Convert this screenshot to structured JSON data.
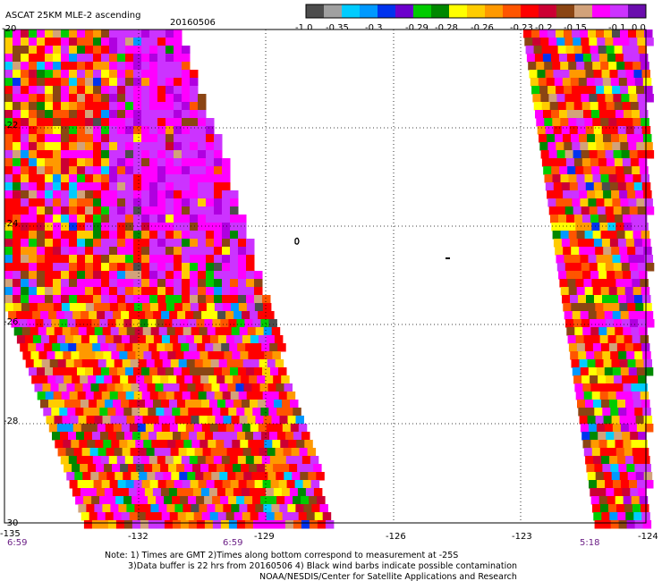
{
  "header": {
    "title": "ASCAT 25KM MLE-2 ascending",
    "date": "20160506"
  },
  "colorbar": {
    "colors": [
      "#4d4d4d",
      "#a0a0a0",
      "#00ccff",
      "#0099ff",
      "#0033ee",
      "#6c00cc",
      "#00cc00",
      "#008800",
      "#ffff00",
      "#ffcc00",
      "#ff9900",
      "#ff5500",
      "#ff0000",
      "#cc0033",
      "#8b4513",
      "#d2a27a",
      "#ff00ff",
      "#cc33ff",
      "#6a0dad"
    ],
    "labels": [
      "-1.0",
      "-0.35",
      "-0.3",
      "-0.29",
      "-0.28",
      "-0.26",
      "-0.23",
      "-0.2",
      "-0.15",
      "-0.1",
      "0.0"
    ]
  },
  "map": {
    "lon_range": [
      -135,
      -124
    ],
    "lat_range": [
      -30,
      -20
    ],
    "x_ticks": [
      "-135",
      "-132",
      "-129",
      "-126",
      "-123",
      "-124"
    ],
    "y_ticks": [
      "-20",
      "-22",
      "-24",
      "-26",
      "-28",
      "-30"
    ],
    "swath_times": [
      "6:59",
      "6:59",
      "5:18"
    ]
  },
  "notes": {
    "line1": "Note: 1) Times are GMT 2)Times along bottom correspond to measurement at -25S",
    "line2": "3)Data buffer is 22 hrs from 20160506 4) Black wind barbs indicate possible contamination",
    "line3": "NOAA/NESDIS/Center for Satellite Applications and Research"
  }
}
